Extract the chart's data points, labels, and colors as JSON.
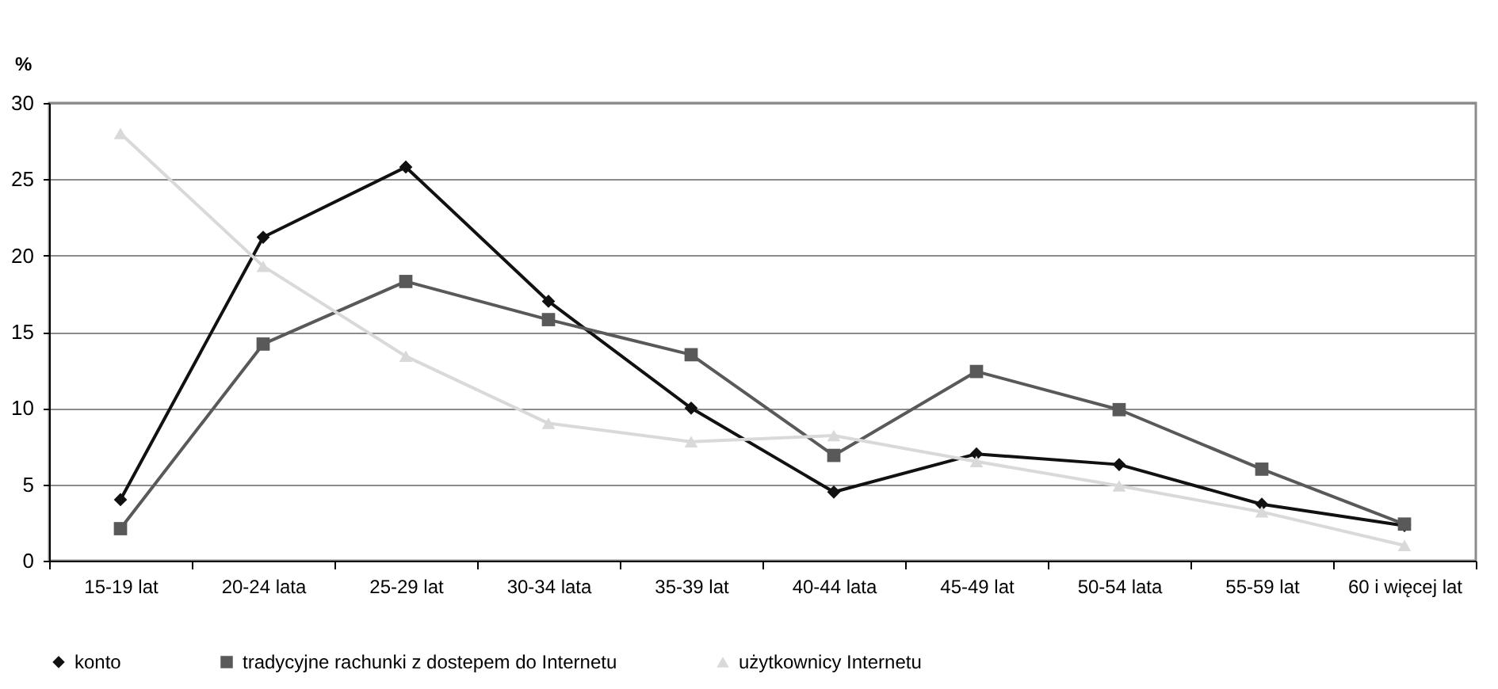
{
  "chart_data": {
    "type": "line",
    "ylabel": "%",
    "categories": [
      "15-19 lat",
      "20-24 lata",
      "25-29 lat",
      "30-34 lata",
      "35-39 lat",
      "40-44 lata",
      "45-49 lat",
      "50-54 lata",
      "55-59 lat",
      "60 i więcej lat"
    ],
    "series": [
      {
        "name": "konto",
        "color": "#111111",
        "marker": "diamond",
        "values": [
          4,
          21.2,
          25.8,
          17,
          10,
          4.5,
          7,
          6.3,
          3.7,
          2.3
        ]
      },
      {
        "name": "tradycyjne rachunki z dostepem do Internetu",
        "color": "#595959",
        "marker": "square",
        "values": [
          2.1,
          14.2,
          18.3,
          15.8,
          13.5,
          6.9,
          12.4,
          9.9,
          6,
          2.4
        ]
      },
      {
        "name": "użytkownicy Internetu",
        "color": "#d9d9d9",
        "marker": "triangle",
        "values": [
          28,
          19.3,
          13.4,
          9,
          7.8,
          8.2,
          6.5,
          4.9,
          3.2,
          1
        ]
      }
    ],
    "ylim": [
      0,
      30
    ],
    "yticks": [
      0,
      5,
      10,
      15,
      20,
      25,
      30
    ],
    "grid": "y",
    "legend": "bottom",
    "line_style": "solid"
  }
}
